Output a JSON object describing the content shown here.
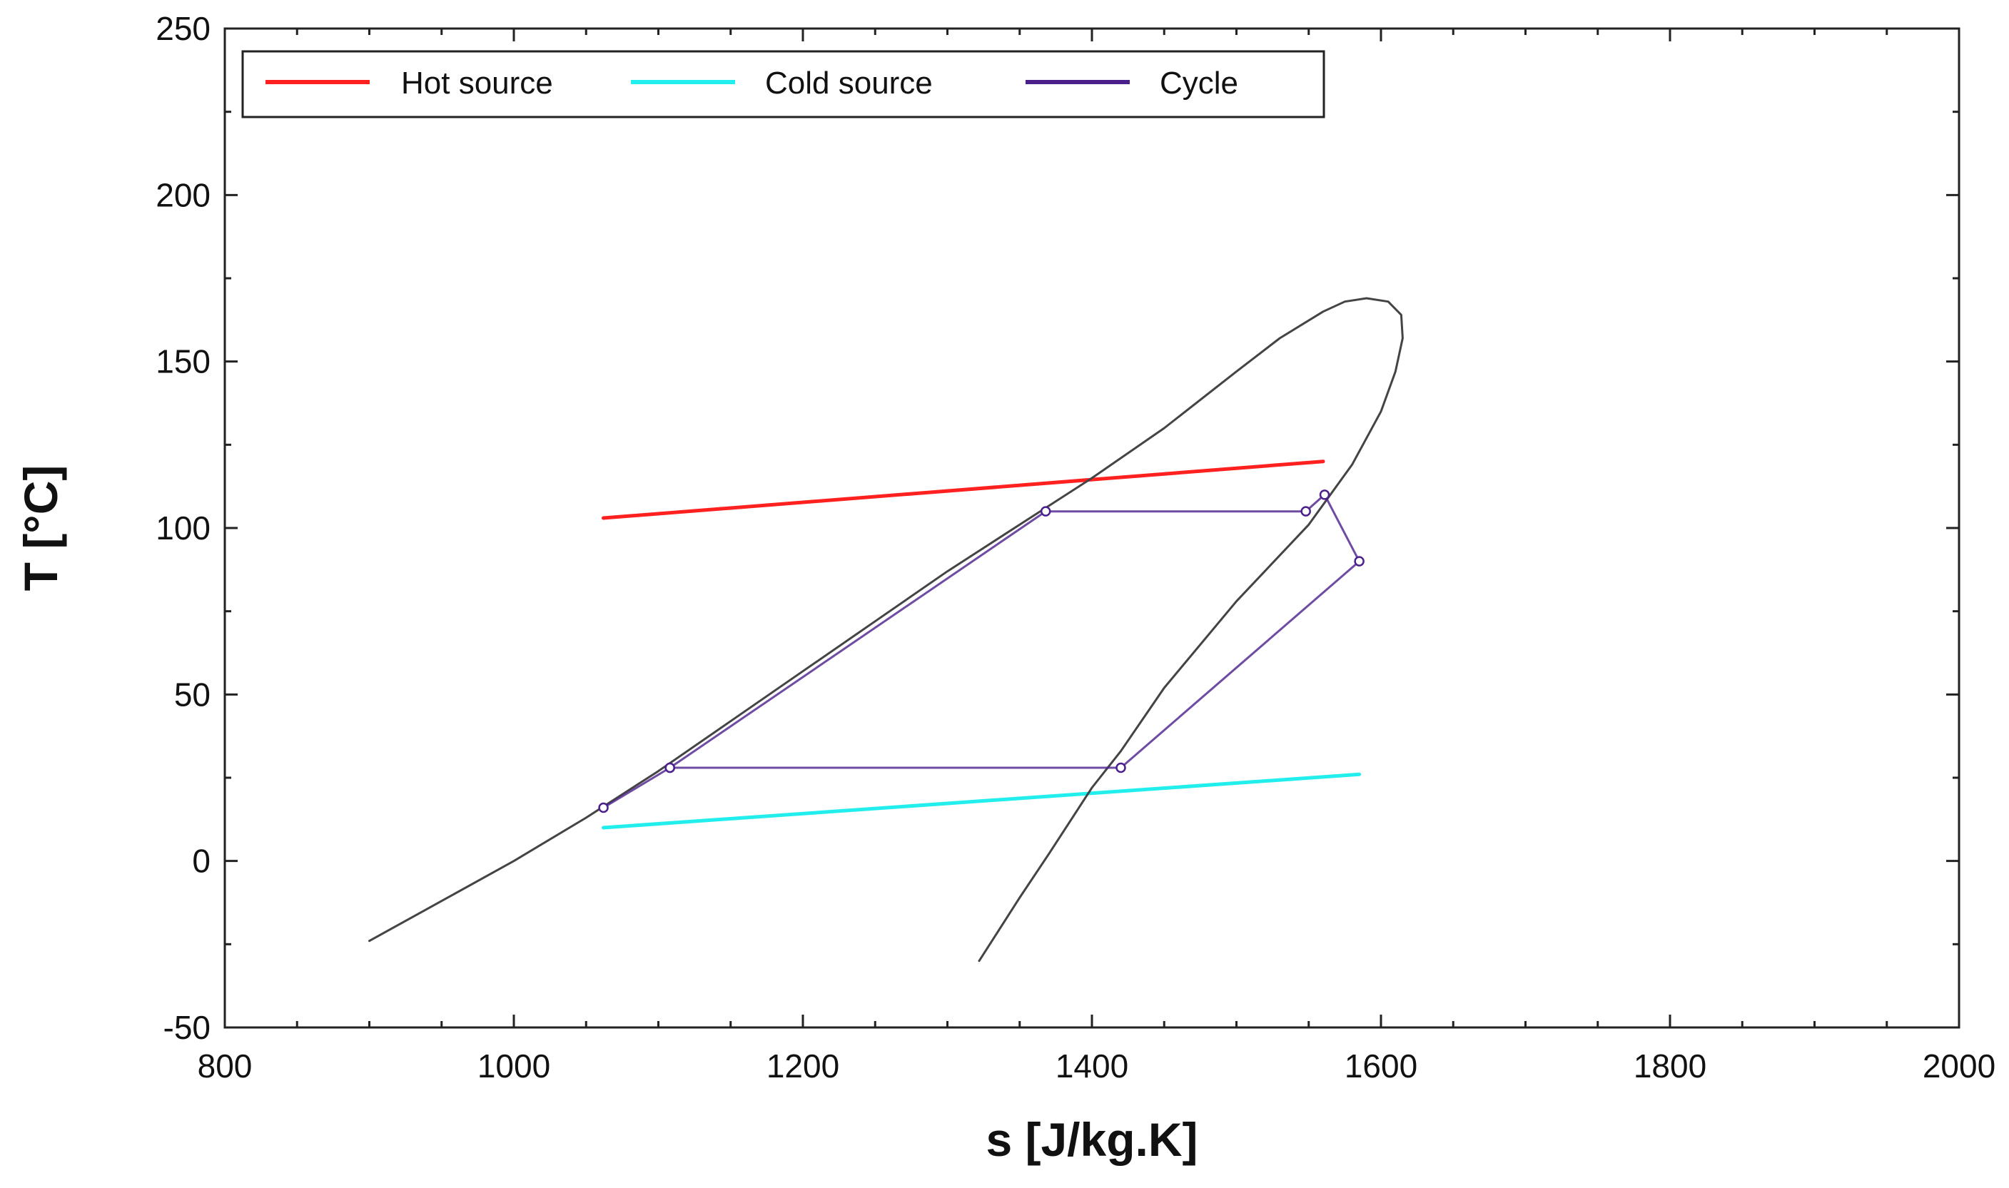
{
  "chart_data": {
    "type": "line",
    "title": "",
    "xlabel": "s [J/kg.K]",
    "ylabel": "T [°C]",
    "xlim": [
      800,
      2000
    ],
    "ylim": [
      -50,
      250
    ],
    "x_ticks": [
      800,
      1000,
      1200,
      1400,
      1600,
      1800,
      2000
    ],
    "y_ticks": [
      -50,
      0,
      50,
      100,
      150,
      200,
      250
    ],
    "x_tick_labels": [
      "800",
      "1000",
      "1200",
      "1400",
      "1600",
      "1800",
      "2000"
    ],
    "y_tick_labels": [
      "-50",
      "0",
      "50",
      "100",
      "150",
      "200",
      "250"
    ],
    "x_minor_step": 50,
    "y_minor_step": 25,
    "grid": false,
    "legend_position": "top-left",
    "legend": [
      {
        "label": "Hot source",
        "color": "#ff2020"
      },
      {
        "label": "Cold source",
        "color": "#22eeee"
      },
      {
        "label": "Cycle",
        "color": "#4b1f8c"
      }
    ],
    "series": [
      {
        "name": "Hot source",
        "color": "#ff2020",
        "markers": false,
        "x": [
          1062,
          1560
        ],
        "y": [
          103,
          120
        ]
      },
      {
        "name": "Cold source",
        "color": "#22eeee",
        "markers": false,
        "x": [
          1062,
          1585
        ],
        "y": [
          10,
          26
        ]
      },
      {
        "name": "Saturation dome",
        "color": "#444444",
        "markers": false,
        "in_legend": false,
        "x": [
          900,
          950,
          1000,
          1050,
          1100,
          1150,
          1200,
          1250,
          1300,
          1350,
          1400,
          1450,
          1500,
          1530,
          1560,
          1575,
          1590,
          1605,
          1614,
          1615,
          1610,
          1600,
          1580,
          1550,
          1500,
          1450,
          1420,
          1400,
          1370,
          1350,
          1322
        ],
        "y": [
          -24,
          -12,
          0,
          13,
          27,
          42,
          57,
          72,
          87,
          101,
          115,
          130,
          147,
          157,
          165,
          168,
          169,
          168,
          164,
          157,
          147,
          135,
          119,
          101,
          78,
          52,
          33,
          22,
          2,
          -11,
          -30
        ]
      },
      {
        "name": "Cycle",
        "color": "#4b1f8c",
        "markers": true,
        "x": [
          1062,
          1108,
          1368,
          1548,
          1561,
          1585,
          1420,
          1108
        ],
        "y": [
          16,
          28,
          105,
          105,
          110,
          90,
          28,
          28
        ]
      }
    ]
  }
}
